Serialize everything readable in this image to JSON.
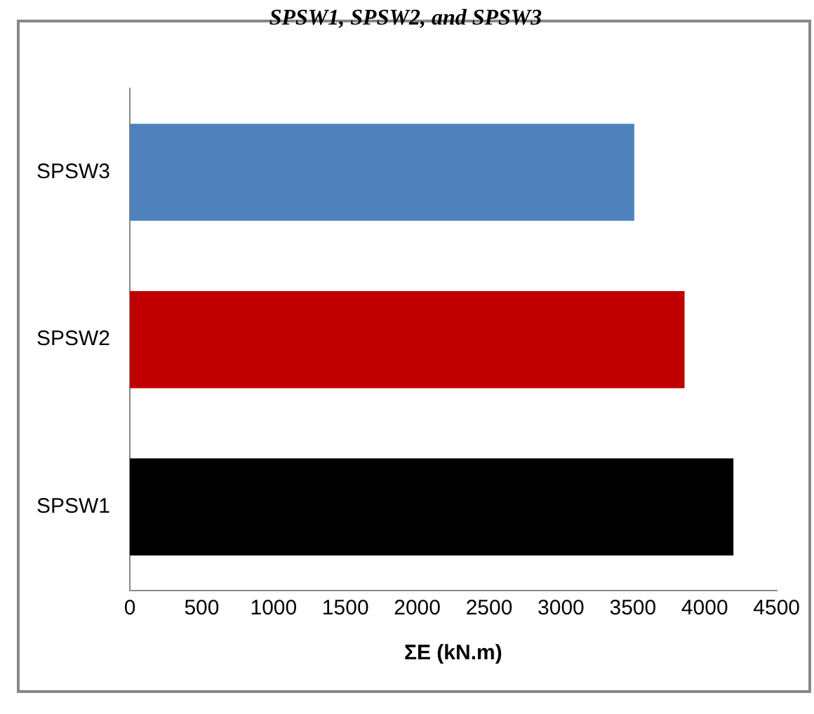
{
  "chart_data": {
    "type": "bar",
    "orientation": "horizontal",
    "title": "SPSW1, SPSW2, and SPSW3",
    "xlabel": "ΣE (kN.m)",
    "categories": [
      "SPSW3",
      "SPSW2",
      "SPSW1"
    ],
    "values": [
      3510,
      3860,
      4200
    ],
    "colors": [
      "#4f81bd",
      "#c00000",
      "#000000"
    ],
    "xlim": [
      0,
      4500
    ],
    "xticks": [
      0,
      500,
      1000,
      1500,
      2000,
      2500,
      3000,
      3500,
      4000,
      4500
    ],
    "grid": false,
    "legend": false
  }
}
